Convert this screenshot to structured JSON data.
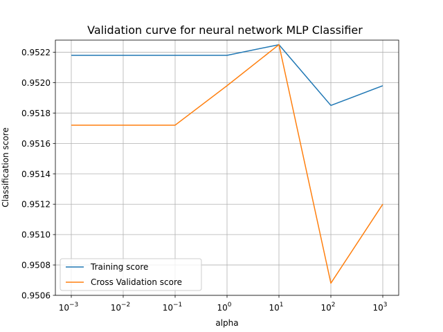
{
  "chart_data": {
    "type": "line",
    "title": "Validation curve for neural network MLP Classifier",
    "xlabel": "alpha",
    "ylabel": "Classification score",
    "x_scale": "log",
    "x": [
      0.001,
      0.01,
      0.1,
      1,
      10,
      100,
      1000
    ],
    "x_tick_labels": [
      {
        "base": "10",
        "exp": "−3"
      },
      {
        "base": "10",
        "exp": "−2"
      },
      {
        "base": "10",
        "exp": "−1"
      },
      {
        "base": "10",
        "exp": "0"
      },
      {
        "base": "10",
        "exp": "1"
      },
      {
        "base": "10",
        "exp": "2"
      },
      {
        "base": "10",
        "exp": "3"
      }
    ],
    "ylim": [
      0.9506,
      0.95228
    ],
    "y_ticks": [
      0.9506,
      0.9508,
      0.951,
      0.9512,
      0.9514,
      0.9516,
      0.9518,
      0.952,
      0.9522
    ],
    "y_tick_labels": [
      "0.9506",
      "0.9508",
      "0.9510",
      "0.9512",
      "0.9514",
      "0.9516",
      "0.9518",
      "0.9520",
      "0.9522"
    ],
    "grid": true,
    "legend_position": "lower-left",
    "series": [
      {
        "name": "Training score",
        "color": "#1f77b4",
        "values": [
          0.95218,
          0.95218,
          0.95218,
          0.95218,
          0.95225,
          0.95185,
          0.95198
        ]
      },
      {
        "name": "Cross Validation score",
        "color": "#ff7f0e",
        "values": [
          0.95172,
          0.95172,
          0.95172,
          0.95198,
          0.95225,
          0.95068,
          0.9512
        ]
      }
    ]
  }
}
